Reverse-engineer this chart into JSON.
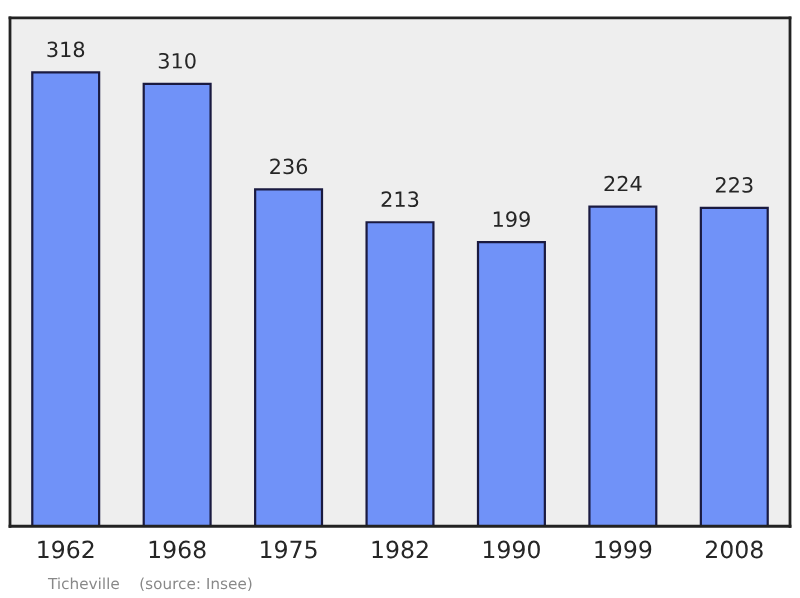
{
  "chart_data": {
    "type": "bar",
    "categories": [
      "1962",
      "1968",
      "1975",
      "1982",
      "1990",
      "1999",
      "2008"
    ],
    "values": [
      318,
      310,
      236,
      213,
      199,
      224,
      223
    ],
    "color": "#7092f8",
    "data_labels": true,
    "grid": false,
    "legend": false,
    "annotations": [
      "Ticheville    (source: Insee)"
    ]
  }
}
